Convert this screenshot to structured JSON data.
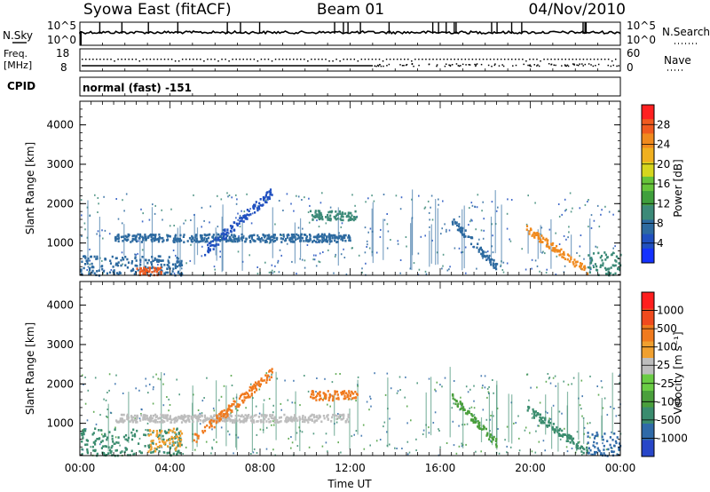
{
  "header": {
    "station": "Syowa East (fitACF)",
    "beam": "Beam 01",
    "date": "04/Nov/2010"
  },
  "status_panels": {
    "nsky": {
      "label": "N.Sky",
      "tick_top": "10^5",
      "tick_bottom": "10^0"
    },
    "nsearch": {
      "label": "N.Search",
      "tick_top": "10^5",
      "tick_bottom": "10^0"
    },
    "freq": {
      "label_line1": "Freq.",
      "label_line2": "[MHz]",
      "tick_top": "18",
      "tick_bottom": "8"
    },
    "nave": {
      "label": "Nave",
      "tick_top": "60",
      "tick_bottom": "0"
    },
    "cpid": {
      "label": "CPID",
      "value": "normal (fast) -151"
    }
  },
  "chart_data": [
    {
      "type": "heatmap",
      "name": "power",
      "ylabel": "Slant Range [km]",
      "y_ticks": [
        "1000",
        "2000",
        "3000",
        "4000"
      ],
      "ylim": [
        180,
        4600
      ],
      "x_ticks": [
        "00:00",
        "04:00",
        "08:00",
        "12:00",
        "16:00",
        "20:00",
        "00:00"
      ],
      "xlim_hours": [
        0,
        24
      ],
      "colorbar": {
        "label": "Power [dB]",
        "ticks": [
          "28",
          "24",
          "20",
          "16",
          "12",
          "8",
          "4"
        ],
        "colors": [
          "#1432ff",
          "#2050c0",
          "#2d6aa0",
          "#3c8a78",
          "#3f9f3c",
          "#66c43a",
          "#d6d61e",
          "#f0b020",
          "#f08a1e",
          "#f05a1e",
          "#ff2020"
        ]
      },
      "features": [
        {
          "desc": "near range echoes",
          "t_start": 0.0,
          "t_end": 4.5,
          "range_km": [
            200,
            700
          ],
          "color": "#2d6aa0"
        },
        {
          "desc": "strong near echo",
          "t_start": 2.5,
          "t_end": 3.6,
          "range_km": [
            200,
            400
          ],
          "color": "#f05a1e"
        },
        {
          "desc": "band ~1150 km",
          "t_start": 1.5,
          "t_end": 12.0,
          "range_km": [
            1050,
            1250
          ],
          "color": "#2d6aa0"
        },
        {
          "desc": "rising arc",
          "t_start": 5.5,
          "t_end": 8.5,
          "range_km": [
            800,
            2300
          ],
          "color": "#2050c0"
        },
        {
          "desc": "band ~1750 km",
          "t_start": 10.2,
          "t_end": 12.3,
          "range_km": [
            1600,
            1850
          ],
          "color": "#3c8a78"
        },
        {
          "desc": "descending streak 17-18h",
          "t_start": 16.5,
          "t_end": 18.5,
          "range_km": [
            400,
            1600
          ],
          "color": "#2d6aa0"
        },
        {
          "desc": "descending streak 20-22h",
          "t_start": 19.8,
          "t_end": 22.5,
          "range_km": [
            300,
            1400
          ],
          "color": "#f08a1e"
        },
        {
          "desc": "late near echoes",
          "t_start": 22.5,
          "t_end": 24.0,
          "range_km": [
            200,
            800
          ],
          "color": "#3c8a78"
        }
      ]
    },
    {
      "type": "heatmap",
      "name": "velocity",
      "ylabel": "Slant Range [km]",
      "y_ticks": [
        "1000",
        "2000",
        "3000",
        "4000"
      ],
      "ylim": [
        180,
        4600
      ],
      "x_ticks": [
        "00:00",
        "04:00",
        "08:00",
        "12:00",
        "16:00",
        "20:00",
        "00:00"
      ],
      "xlim_hours": [
        0,
        24
      ],
      "xlabel": "Time UT",
      "colorbar": {
        "label": "Velocity [m s⁻¹]",
        "ticks": [
          "1000",
          "500",
          "100",
          "25",
          "-25",
          "-100",
          "-500",
          "-1000"
        ],
        "colors": [
          "#2846c8",
          "#2f6aa8",
          "#3a8c6e",
          "#4a9f3c",
          "#6acc44",
          "#bdbdbd",
          "#f0a030",
          "#f07a1e",
          "#f04a1e",
          "#ff1e1e"
        ]
      },
      "features": [
        {
          "desc": "near range echoes",
          "t_start": 0.0,
          "t_end": 4.5,
          "range_km": [
            200,
            900
          ],
          "color": "#3a8c6e"
        },
        {
          "desc": "orange patch",
          "t_start": 3.0,
          "t_end": 4.5,
          "range_km": [
            300,
            900
          ],
          "color": "#f0a030"
        },
        {
          "desc": "grey band ~1150 km",
          "t_start": 1.5,
          "t_end": 12.0,
          "range_km": [
            1050,
            1250
          ],
          "color": "#bdbdbd"
        },
        {
          "desc": "rising arc",
          "t_start": 5.0,
          "t_end": 8.5,
          "range_km": [
            600,
            2300
          ],
          "color": "#f07a1e"
        },
        {
          "desc": "band ~1750 km",
          "t_start": 10.2,
          "t_end": 12.3,
          "range_km": [
            1600,
            1850
          ],
          "color": "#f07a1e"
        },
        {
          "desc": "descending streak 17-18h",
          "t_start": 16.5,
          "t_end": 18.5,
          "range_km": [
            500,
            1700
          ],
          "color": "#4a9f3c"
        },
        {
          "desc": "descending streak 20-22h",
          "t_start": 19.8,
          "t_end": 22.5,
          "range_km": [
            300,
            1400
          ],
          "color": "#3a8c6e"
        },
        {
          "desc": "late near echoes",
          "t_start": 22.5,
          "t_end": 24.0,
          "range_km": [
            200,
            800
          ],
          "color": "#2f6aa8"
        }
      ]
    }
  ]
}
